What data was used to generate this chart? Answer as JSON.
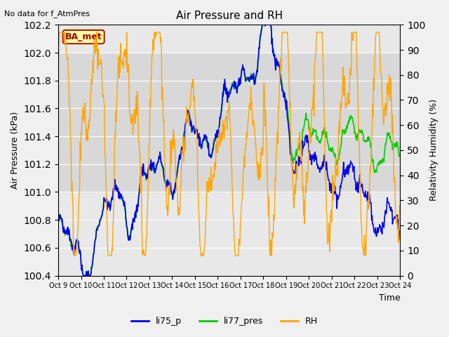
{
  "title": "Air Pressure and RH",
  "top_left_text": "No data for f_AtmPres",
  "box_label": "BA_met",
  "xlabel": "Time",
  "ylabel_left": "Air Pressure (kPa)",
  "ylabel_right": "Relativity Humidity (%)",
  "ylim_left": [
    100.4,
    102.2
  ],
  "ylim_right": [
    0,
    100
  ],
  "yticks_left": [
    100.4,
    100.6,
    100.8,
    101.0,
    101.2,
    101.4,
    101.6,
    101.8,
    102.0,
    102.2
  ],
  "yticks_right": [
    0,
    10,
    20,
    30,
    40,
    50,
    60,
    70,
    80,
    90,
    100
  ],
  "xtick_labels": [
    "Oct 9",
    "Oct 10",
    "Oct 11",
    "Oct 12",
    "Oct 13",
    "Oct 14",
    "Oct 15",
    "Oct 16",
    "Oct 17",
    "Oct 18",
    "Oct 19",
    "Oct 20",
    "Oct 21",
    "Oct 22",
    "Oct 23",
    "Oct 24"
  ],
  "color_li75": "#0000EE",
  "color_li77": "#00CC00",
  "color_rh": "#FFA500",
  "legend_labels": [
    "li75_p",
    "li77_pres",
    "RH"
  ],
  "bg_color": "#F0F0F0",
  "plot_bg_color": "#E8E8E8",
  "grid_color": "#FFFFFF",
  "shaded_band": [
    101.0,
    102.0
  ]
}
